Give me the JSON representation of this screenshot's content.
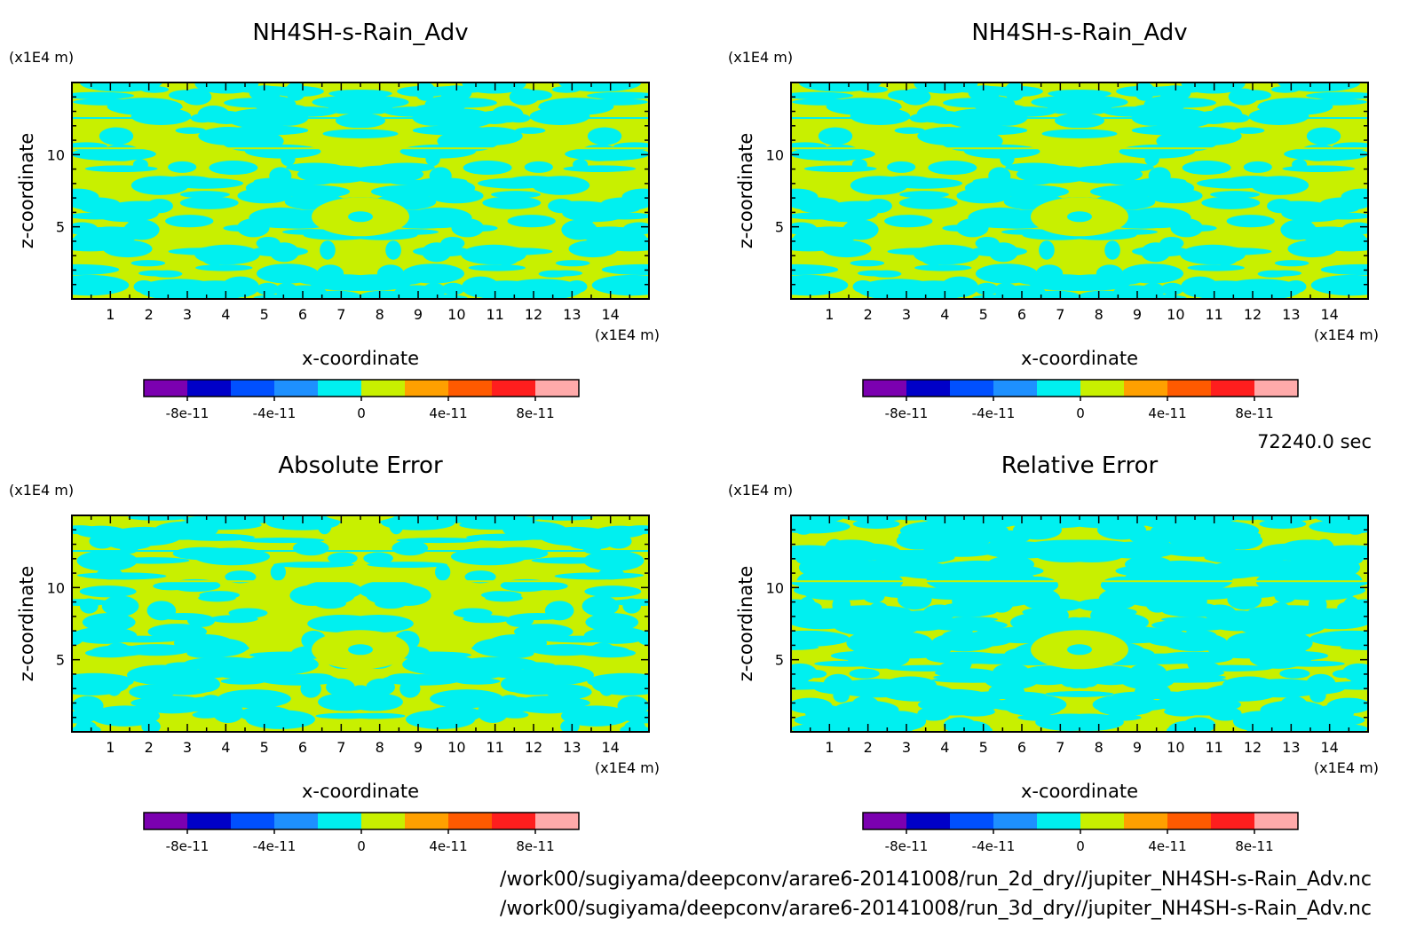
{
  "chart_data": [
    {
      "type": "heatmap",
      "title": "NH4SH-s-Rain_Adv",
      "xlabel": "x-coordinate",
      "ylabel": "z-coordinate",
      "x_unit": "(x1E4 m)",
      "y_unit": "(x1E4 m)",
      "xlim": [
        0,
        15
      ],
      "ylim": [
        0,
        15
      ],
      "xticks": [
        1,
        2,
        3,
        4,
        5,
        6,
        7,
        8,
        9,
        10,
        11,
        12,
        13,
        14
      ],
      "yticks": [
        5,
        10
      ],
      "colorbar": {
        "colors": [
          "#7b00b0",
          "#0000c8",
          "#0050ff",
          "#1e90ff",
          "#00f0f0",
          "#c8f000",
          "#ffa000",
          "#ff5a00",
          "#ff1e1e",
          "#ffaaaa"
        ],
        "tick_labels": [
          "-8e-11",
          "-4e-11",
          "0",
          "4e-11",
          "8e-11"
        ]
      }
    },
    {
      "type": "heatmap",
      "title": "NH4SH-s-Rain_Adv",
      "xlabel": "x-coordinate",
      "ylabel": "z-coordinate",
      "x_unit": "(x1E4 m)",
      "y_unit": "(x1E4 m)",
      "xlim": [
        0,
        15
      ],
      "ylim": [
        0,
        15
      ],
      "xticks": [
        1,
        2,
        3,
        4,
        5,
        6,
        7,
        8,
        9,
        10,
        11,
        12,
        13,
        14
      ],
      "yticks": [
        5,
        10
      ],
      "colorbar": {
        "colors": [
          "#7b00b0",
          "#0000c8",
          "#0050ff",
          "#1e90ff",
          "#00f0f0",
          "#c8f000",
          "#ffa000",
          "#ff5a00",
          "#ff1e1e",
          "#ffaaaa"
        ],
        "tick_labels": [
          "-8e-11",
          "-4e-11",
          "0",
          "4e-11",
          "8e-11"
        ]
      }
    },
    {
      "type": "heatmap",
      "title": "Absolute Error",
      "xlabel": "x-coordinate",
      "ylabel": "z-coordinate",
      "x_unit": "(x1E4 m)",
      "y_unit": "(x1E4 m)",
      "xlim": [
        0,
        15
      ],
      "ylim": [
        0,
        15
      ],
      "xticks": [
        1,
        2,
        3,
        4,
        5,
        6,
        7,
        8,
        9,
        10,
        11,
        12,
        13,
        14
      ],
      "yticks": [
        5,
        10
      ],
      "colorbar": {
        "colors": [
          "#7b00b0",
          "#0000c8",
          "#0050ff",
          "#1e90ff",
          "#00f0f0",
          "#c8f000",
          "#ffa000",
          "#ff5a00",
          "#ff1e1e",
          "#ffaaaa"
        ],
        "tick_labels": [
          "-8e-11",
          "-4e-11",
          "0",
          "4e-11",
          "8e-11"
        ]
      }
    },
    {
      "type": "heatmap",
      "title": "Relative Error",
      "xlabel": "x-coordinate",
      "ylabel": "z-coordinate",
      "x_unit": "(x1E4 m)",
      "y_unit": "(x1E4 m)",
      "xlim": [
        0,
        15
      ],
      "ylim": [
        0,
        15
      ],
      "xticks": [
        1,
        2,
        3,
        4,
        5,
        6,
        7,
        8,
        9,
        10,
        11,
        12,
        13,
        14
      ],
      "yticks": [
        5,
        10
      ],
      "colorbar": {
        "colors": [
          "#7b00b0",
          "#0000c8",
          "#0050ff",
          "#1e90ff",
          "#00f0f0",
          "#c8f000",
          "#ffa000",
          "#ff5a00",
          "#ff1e1e",
          "#ffaaaa"
        ],
        "tick_labels": [
          "-8e-11",
          "-4e-11",
          "0",
          "4e-11",
          "8e-11"
        ]
      }
    }
  ],
  "time_label": "72240.0 sec",
  "file_paths": [
    "/work00/sugiyama/deepconv/arare6-20141008/run_2d_dry//jupiter_NH4SH-s-Rain_Adv.nc",
    "/work00/sugiyama/deepconv/arare6-20141008/run_3d_dry//jupiter_NH4SH-s-Rain_Adv.nc"
  ],
  "field_colors": {
    "negative_small": "#00f0f0",
    "positive_small": "#c8f000"
  }
}
